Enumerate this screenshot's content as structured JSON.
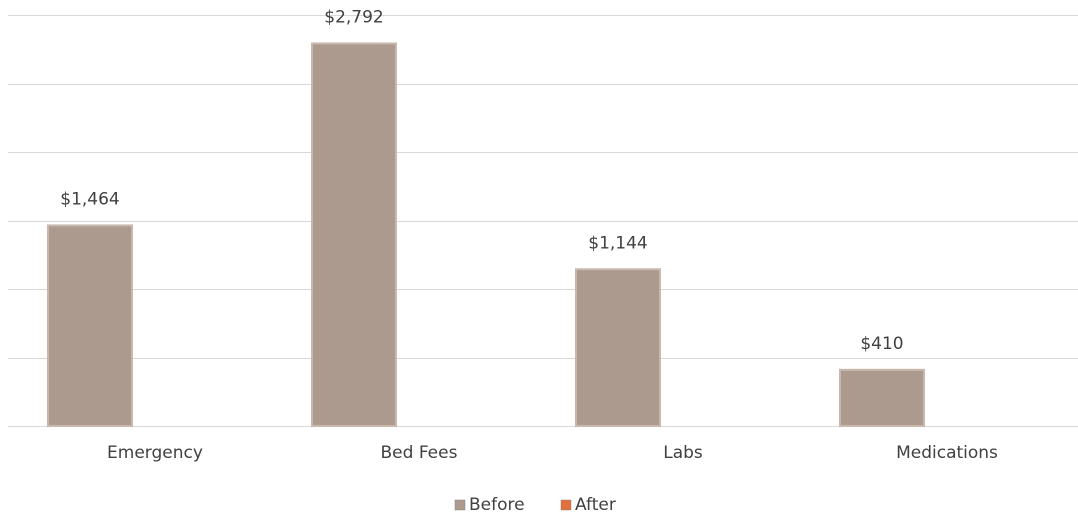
{
  "chart_data": {
    "type": "bar",
    "categories": [
      "Emergency",
      "Bed Fees",
      "Labs",
      "Medications"
    ],
    "series": [
      {
        "name": "Before",
        "color": "#ad9a8e",
        "values": [
          1464,
          2792,
          1144,
          410
        ],
        "value_labels": [
          "$1,464",
          "$2,792",
          "$1,144",
          "$410"
        ]
      },
      {
        "name": "After",
        "color": "#e2703a",
        "values": [
          null,
          null,
          null,
          null
        ]
      }
    ],
    "ylim": [
      0,
      3000
    ],
    "yticks": [
      0,
      500,
      1000,
      1500,
      2000,
      2500,
      3000
    ],
    "grid": true,
    "legend": "bottom"
  }
}
